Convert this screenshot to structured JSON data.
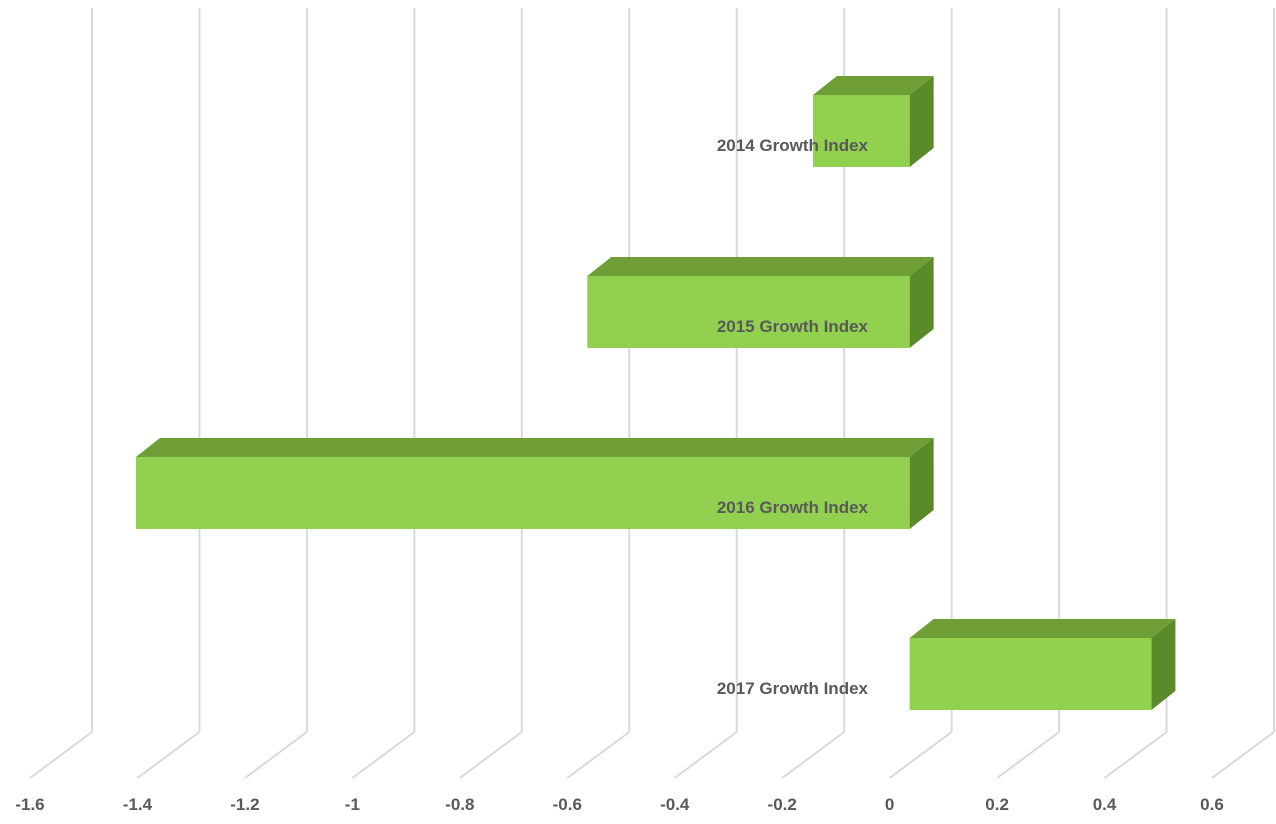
{
  "chart_data": {
    "type": "bar",
    "orientation": "horizontal",
    "style": "3d",
    "title": "",
    "xlabel": "",
    "ylabel": "",
    "categories": [
      "2014 Growth Index",
      "2015 Growth Index",
      "2016 Growth Index",
      "2017 Growth Index"
    ],
    "values": [
      -0.18,
      -0.6,
      -1.44,
      0.45
    ],
    "xlim": [
      -1.6,
      0.6
    ],
    "x_ticks": [
      "-1.6",
      "-1.4",
      "-1.2",
      "-1",
      "-0.8",
      "-0.6",
      "-0.4",
      "-0.2",
      "0",
      "0.2",
      "0.4",
      "0.6"
    ],
    "grid": true,
    "legend": "none",
    "colors": {
      "bar_front": "#92d050",
      "bar_top": "#6e9e35",
      "bar_side": "#5b8a2a",
      "grid": "#d9d9d9",
      "text": "#595959"
    }
  }
}
